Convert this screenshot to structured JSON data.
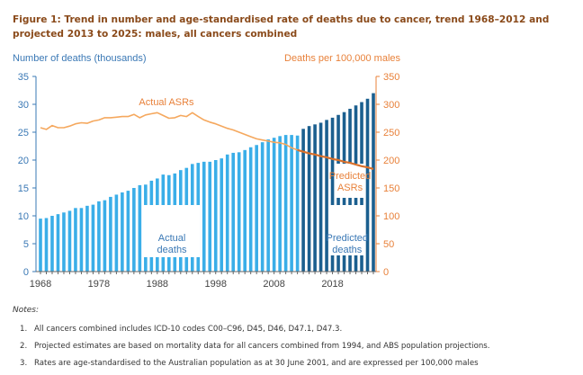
{
  "figure": {
    "title": "Figure 1: Trend in number and age-standardised rate of deaths due to cancer, trend 1968–2012 and projected 2013 to 2025: males, all cancers combined"
  },
  "chart_data": {
    "type": "bar",
    "title": "Trend in number and age-standardised rate of deaths due to cancer, trend 1968–2012 and projected 2013 to 2025: males, all cancers combined",
    "xlabel": "",
    "ylabel": "Number of deaths (thousands)",
    "y2label": "Deaths per 100,000 males",
    "x": [
      1968,
      1969,
      1970,
      1971,
      1972,
      1973,
      1974,
      1975,
      1976,
      1977,
      1978,
      1979,
      1980,
      1981,
      1982,
      1983,
      1984,
      1985,
      1986,
      1987,
      1988,
      1989,
      1990,
      1991,
      1992,
      1993,
      1994,
      1995,
      1996,
      1997,
      1998,
      1999,
      2000,
      2001,
      2002,
      2003,
      2004,
      2005,
      2006,
      2007,
      2008,
      2009,
      2010,
      2011,
      2012,
      2013,
      2014,
      2015,
      2016,
      2017,
      2018,
      2019,
      2020,
      2021,
      2022,
      2023,
      2024,
      2025
    ],
    "xticks": [
      "1968",
      "1978",
      "1988",
      "1998",
      "2008",
      "2018"
    ],
    "xtick_values": [
      1968,
      1978,
      1988,
      1998,
      2008,
      2018
    ],
    "xlim": [
      1968,
      2025
    ],
    "ylim": [
      0,
      35
    ],
    "yticks": [
      "0",
      "5",
      "10",
      "15",
      "20",
      "25",
      "30",
      "35"
    ],
    "y2lim": [
      0,
      350
    ],
    "y2ticks": [
      "0",
      "50",
      "100",
      "150",
      "200",
      "250",
      "300",
      "350"
    ],
    "grid": false,
    "series": [
      {
        "name": "Actual deaths",
        "type": "bar",
        "axis": "left",
        "color": "#3aaee8",
        "x_start": 1968,
        "values": [
          9.5,
          9.6,
          10.0,
          10.3,
          10.6,
          10.9,
          11.4,
          11.4,
          11.8,
          12.0,
          12.6,
          12.8,
          13.4,
          13.8,
          14.2,
          14.5,
          15.0,
          15.5,
          15.6,
          16.3,
          16.7,
          17.4,
          17.3,
          17.6,
          18.2,
          18.6,
          19.3,
          19.5,
          19.7,
          19.7,
          20.0,
          20.3,
          21.0,
          21.3,
          21.4,
          21.8,
          22.3,
          22.7,
          23.2,
          23.7,
          24.0,
          24.3,
          24.5,
          24.5,
          24.4
        ]
      },
      {
        "name": "Predicted deaths",
        "type": "bar",
        "axis": "left",
        "color": "#1b5f8f",
        "x_start": 2013,
        "values": [
          25.6,
          26.1,
          26.4,
          26.7,
          27.2,
          27.6,
          28.1,
          28.6,
          29.2,
          29.8,
          30.4,
          31.0,
          32.0
        ]
      },
      {
        "name": "Actual ASRs",
        "type": "line",
        "axis": "right",
        "color": "#f5a85e",
        "x_start": 1968,
        "values": [
          258,
          255,
          262,
          258,
          258,
          261,
          265,
          267,
          266,
          270,
          272,
          276,
          276,
          277,
          278,
          278,
          282,
          276,
          281,
          283,
          285,
          280,
          275,
          276,
          280,
          278,
          285,
          278,
          272,
          268,
          265,
          261,
          257,
          254,
          250,
          246,
          242,
          238,
          236,
          234,
          232,
          231,
          228,
          222,
          218
        ]
      },
      {
        "name": "Predicted ASRs",
        "type": "line",
        "axis": "right",
        "color": "#d9702a",
        "x_start": 2012,
        "values": [
          218,
          215,
          212,
          210,
          207,
          205,
          202,
          200,
          197,
          195,
          192,
          189,
          187,
          184
        ]
      }
    ],
    "annotations": [
      {
        "text": "Actual ASRs",
        "color": "#e8813a"
      },
      {
        "text_lines": [
          "Predicted",
          "ASRs"
        ],
        "color": "#e8813a"
      },
      {
        "text_lines": [
          "Actual",
          "deaths"
        ],
        "color": "#3a78b5"
      },
      {
        "text_lines": [
          "Predicted",
          "deaths"
        ],
        "color": "#3a78b5"
      }
    ]
  },
  "notes": {
    "title": "Notes:",
    "items": [
      {
        "num": "1.",
        "text": "All cancers combined includes ICD-10 codes C00–C96, D45, D46, D47.1, D47.3."
      },
      {
        "num": "2.",
        "text": "Projected estimates are based on mortality data for all cancers combined from 1994, and ABS population projections."
      },
      {
        "num": "3.",
        "text": "Rates are age-standardised to the Australian population as at 30 June 2001, and are expressed per 100,000 males"
      }
    ]
  }
}
